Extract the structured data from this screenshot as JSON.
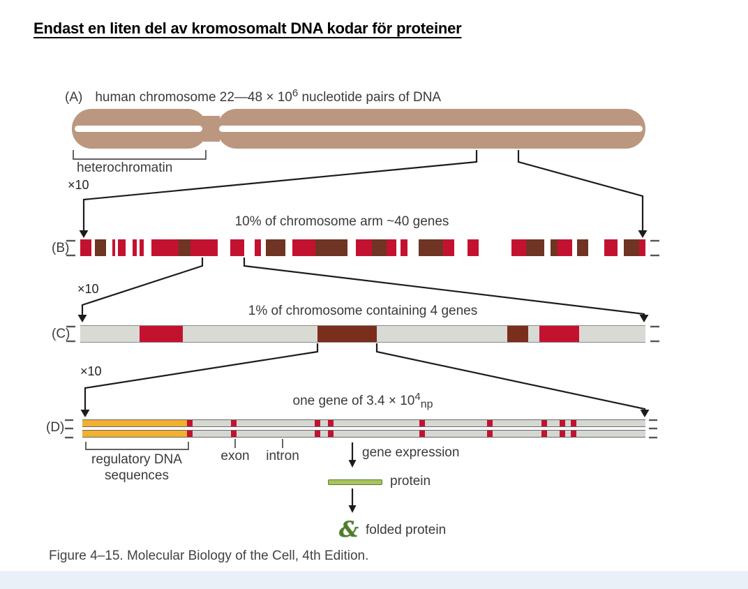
{
  "slide_title": "Endast en liten del av kromosomalt DNA kodar för proteiner",
  "caption": "Figure 4–15. Molecular Biology of the Cell, 4th Edition.",
  "colors": {
    "r": "#c31230",
    "b": "#6f3423",
    "b2": "#7a2e1c",
    "w": "#ffffff",
    "g": "#d9dad4",
    "tan": "#bc977f",
    "orange": "#f1b02f",
    "track_gray": "#d5d7d1",
    "protein_fill": "#a9c35e",
    "protein_border": "#55802d",
    "folded_green": "#4e7e2b",
    "line": "#1c1c1c"
  },
  "panels": {
    "a": {
      "label": "(A)",
      "heading": "human chromosome 22—48 × 10",
      "heading_exponent": "6",
      "heading_suffix": " nucleotide pairs of DNA",
      "heterochromatin_label": "heterochromatin"
    },
    "b": {
      "label": "(B)",
      "zoom_label": "×10",
      "heading": "10% of chromosome arm ~40 genes",
      "segments": [
        [
          "r",
          14
        ],
        [
          "w",
          4
        ],
        [
          "b",
          14
        ],
        [
          "w",
          7
        ],
        [
          "r",
          4
        ],
        [
          "w",
          3
        ],
        [
          "r",
          10
        ],
        [
          "w",
          8
        ],
        [
          "r",
          5
        ],
        [
          "w",
          4
        ],
        [
          "r",
          5
        ],
        [
          "w",
          9
        ],
        [
          "r",
          34
        ],
        [
          "b",
          14
        ],
        [
          "r",
          34
        ],
        [
          "w",
          15
        ],
        [
          "r",
          17
        ],
        [
          "w",
          13
        ],
        [
          "r",
          8
        ],
        [
          "w",
          6
        ],
        [
          "b",
          24
        ],
        [
          "w",
          8
        ],
        [
          "r",
          28
        ],
        [
          "b",
          40
        ],
        [
          "w",
          10
        ],
        [
          "r",
          20
        ],
        [
          "b",
          18
        ],
        [
          "r",
          12
        ],
        [
          "w",
          5
        ],
        [
          "r",
          8
        ],
        [
          "w",
          14
        ],
        [
          "b",
          30
        ],
        [
          "r",
          14
        ],
        [
          "w",
          16
        ],
        [
          "r",
          14
        ],
        [
          "w",
          40
        ],
        [
          "r",
          18
        ],
        [
          "b",
          22
        ],
        [
          "w",
          8
        ],
        [
          "b",
          8
        ],
        [
          "r",
          18
        ],
        [
          "w",
          6
        ],
        [
          "b",
          14
        ],
        [
          "w",
          20
        ],
        [
          "r",
          16
        ],
        [
          "w",
          8
        ],
        [
          "b",
          18
        ],
        [
          "r",
          8
        ]
      ]
    },
    "c": {
      "label": "(C)",
      "zoom_label": "×10",
      "heading": "1% of chromosome containing 4 genes",
      "segments": [
        [
          "g",
          85
        ],
        [
          "r",
          62
        ],
        [
          "g",
          193
        ],
        [
          "b2",
          85
        ],
        [
          "g",
          187
        ],
        [
          "b2",
          30
        ],
        [
          "g",
          16
        ],
        [
          "r",
          57
        ],
        [
          "g",
          95
        ]
      ]
    },
    "d": {
      "label": "(D)",
      "zoom_label": "×10",
      "heading": "one gene of 3.4 × 10",
      "heading_exponent": "4",
      "heading_subscript": "np",
      "regulatory_width_pct": 19,
      "stripes_pct": [
        19.1,
        26.9,
        41.8,
        44.1,
        60.3,
        72.4,
        82.0,
        85.3,
        87.2
      ],
      "labels": {
        "regulatory_line1": "regulatory DNA",
        "regulatory_line2": "sequences",
        "exon": "exon",
        "intron": "intron",
        "gene_expression": "gene expression",
        "protein": "protein",
        "folded_protein": "folded protein",
        "folded_protein_glyph": "&"
      }
    }
  }
}
